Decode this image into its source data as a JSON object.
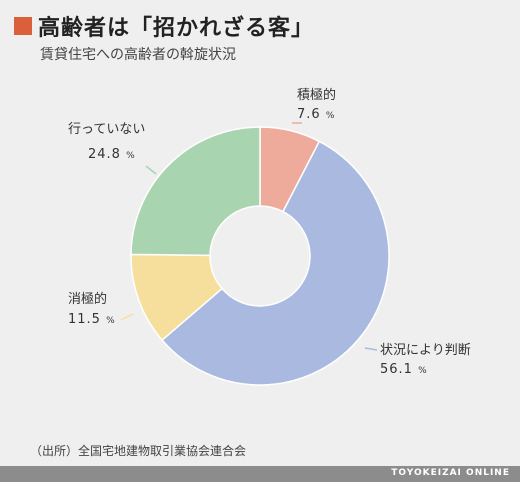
{
  "header": {
    "title": "高齢者は「招かれざる客」",
    "subtitle": "賃貸住宅への高齢者の斡旋状況",
    "accent_color": "#d9603b"
  },
  "chart_data": {
    "type": "pie",
    "title": "高齢者は「招かれざる客」",
    "subtitle": "賃貸住宅への高齢者の斡旋状況",
    "donut": true,
    "unit": "%",
    "slices": [
      {
        "label": "積極的",
        "value": 7.6,
        "display": "7.6",
        "color": "#eeab9c"
      },
      {
        "label": "状況により判断",
        "value": 56.1,
        "display": "56.1",
        "color": "#a9b9e0"
      },
      {
        "label": "消極的",
        "value": 11.5,
        "display": "11.5",
        "color": "#f6df9c"
      },
      {
        "label": "行っていない",
        "value": 24.8,
        "display": "24.8",
        "color": "#a9d4b0"
      }
    ]
  },
  "source": "（出所）全国宅地建物取引業協会連合会",
  "footer": {
    "brand": "TOYOKEIZAI ONLINE"
  }
}
